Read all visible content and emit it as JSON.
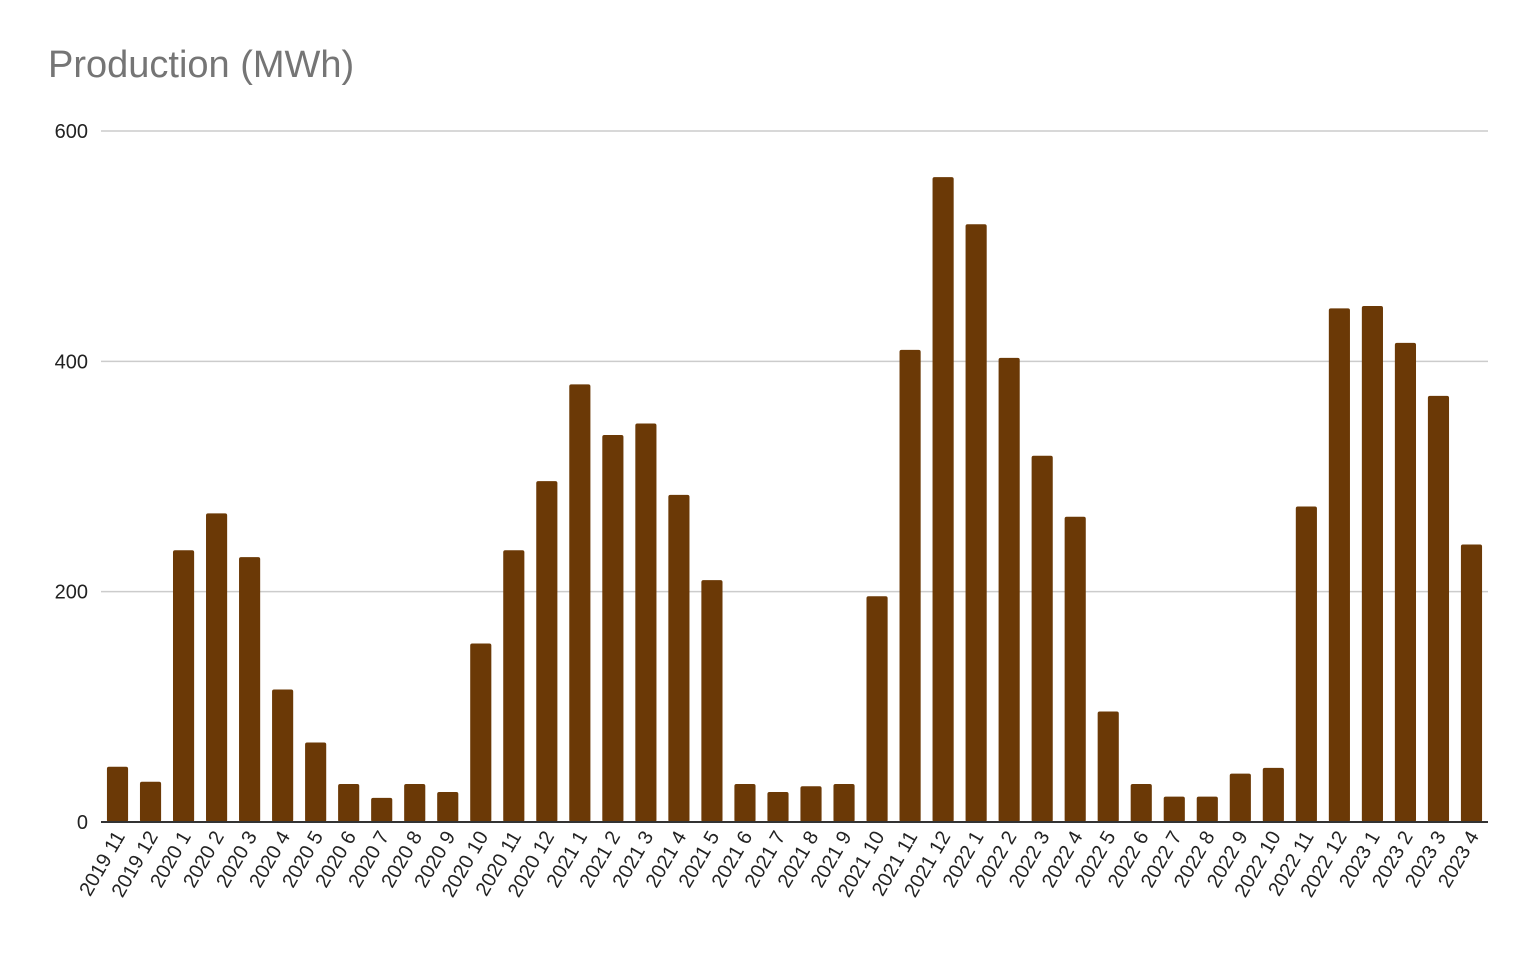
{
  "chart_data": {
    "type": "bar",
    "title": "Production (MWh)",
    "xlabel": "",
    "ylabel": "",
    "ylim": [
      0,
      600
    ],
    "yticks": [
      0,
      200,
      400,
      600
    ],
    "grid": true,
    "legend": "none",
    "bar_color": "#6b3906",
    "categories": [
      "2019 11",
      "2019 12",
      "2020 1",
      "2020 2",
      "2020 3",
      "2020 4",
      "2020 5",
      "2020 6",
      "2020 7",
      "2020 8",
      "2020 9",
      "2020 10",
      "2020 11",
      "2020 12",
      "2021 1",
      "2021 2",
      "2021 3",
      "2021 4",
      "2021 5",
      "2021 6",
      "2021 7",
      "2021 8",
      "2021 9",
      "2021 10",
      "2021 11",
      "2021 12",
      "2022 1",
      "2022 2",
      "2022 3",
      "2022 4",
      "2022 5",
      "2022 6",
      "2022 7",
      "2022 8",
      "2022 9",
      "2022 10",
      "2022 11",
      "2022 12",
      "2023 1",
      "2023 2",
      "2023 3",
      "2023 4"
    ],
    "values": [
      48,
      35,
      236,
      268,
      230,
      115,
      69,
      33,
      21,
      33,
      26,
      155,
      236,
      296,
      380,
      336,
      346,
      284,
      210,
      33,
      26,
      31,
      33,
      196,
      410,
      560,
      519,
      403,
      318,
      265,
      96,
      33,
      22,
      22,
      42,
      47,
      274,
      446,
      448,
      416,
      370,
      241
    ]
  }
}
